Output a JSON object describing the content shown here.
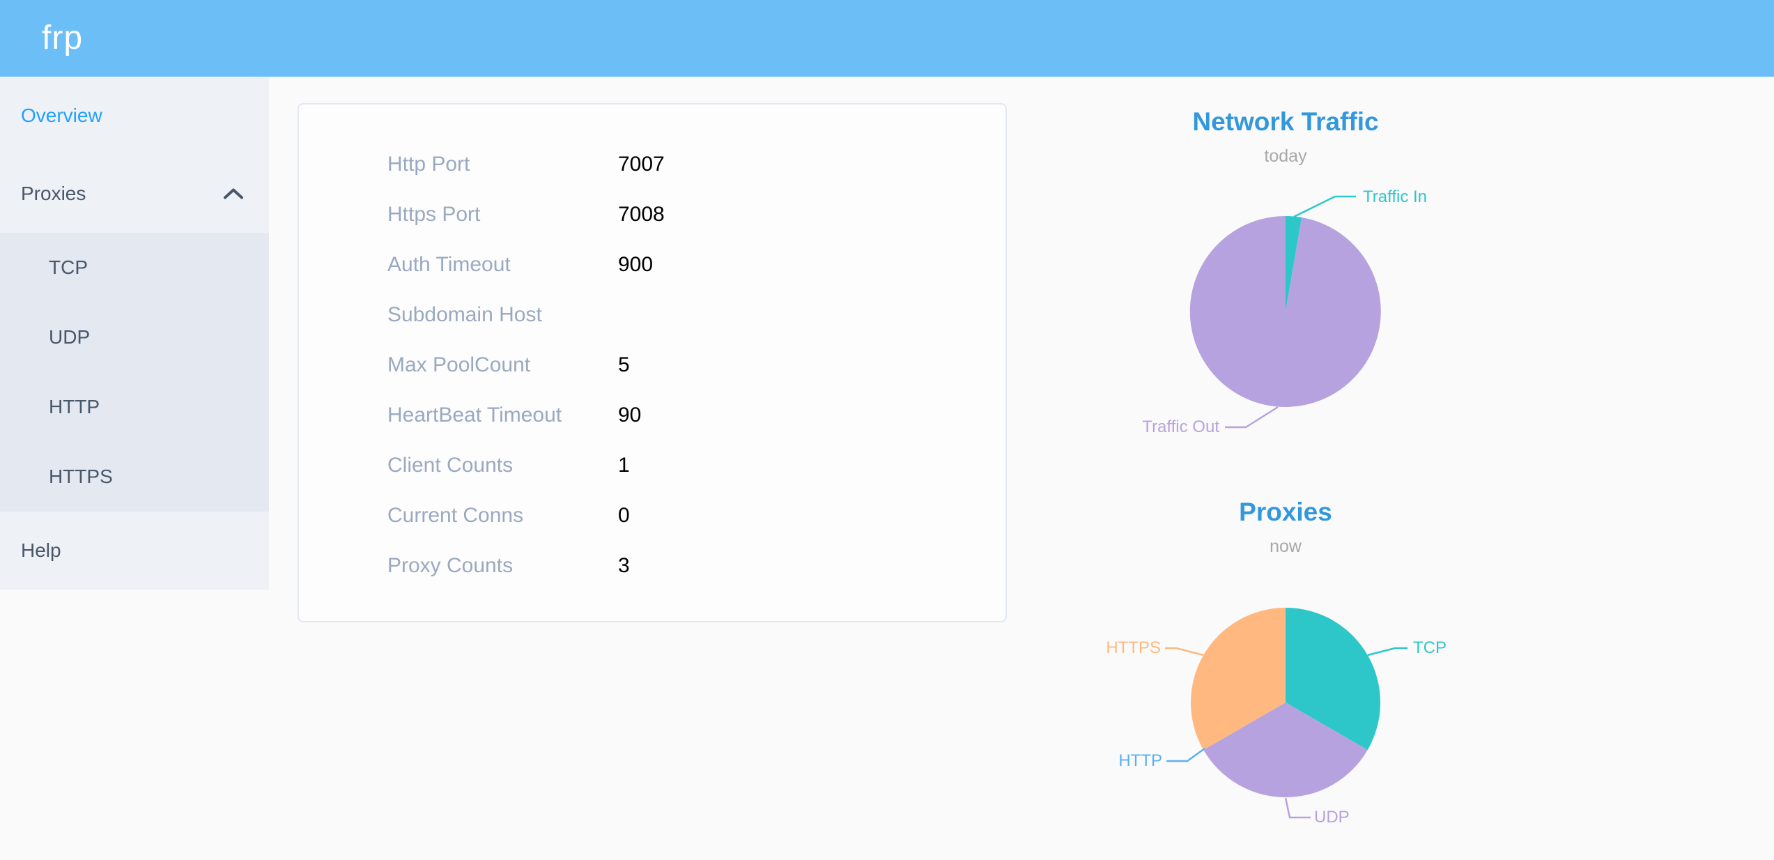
{
  "header": {
    "logo": "frp"
  },
  "sidebar": {
    "items": [
      {
        "label": "Overview",
        "active": true
      },
      {
        "label": "Proxies",
        "expanded": true
      },
      {
        "label": "TCP"
      },
      {
        "label": "UDP"
      },
      {
        "label": "HTTP"
      },
      {
        "label": "HTTPS"
      },
      {
        "label": "Help"
      }
    ]
  },
  "server_info": {
    "rows": [
      {
        "label": "Http Port",
        "value": "7007"
      },
      {
        "label": "Https Port",
        "value": "7008"
      },
      {
        "label": "Auth Timeout",
        "value": "900"
      },
      {
        "label": "Subdomain Host",
        "value": ""
      },
      {
        "label": "Max PoolCount",
        "value": "5"
      },
      {
        "label": "HeartBeat Timeout",
        "value": "90"
      },
      {
        "label": "Client Counts",
        "value": "1"
      },
      {
        "label": "Current Conns",
        "value": "0"
      },
      {
        "label": "Proxy Counts",
        "value": "3"
      }
    ]
  },
  "chart_data": [
    {
      "type": "pie",
      "title": "Network Traffic",
      "subtitle": "today",
      "legend_position": "none",
      "labels": "outside",
      "series": [
        {
          "name": "Traffic In",
          "value": 2.7,
          "color": "#2ec7c9"
        },
        {
          "name": "Traffic Out",
          "value": 97.3,
          "color": "#b6a2de"
        }
      ]
    },
    {
      "type": "pie",
      "title": "Proxies",
      "subtitle": "now",
      "legend_position": "none",
      "labels": "outside",
      "series": [
        {
          "name": "TCP",
          "value": 1,
          "color": "#2ec7c9"
        },
        {
          "name": "UDP",
          "value": 1,
          "color": "#b6a2de"
        },
        {
          "name": "HTTP",
          "value": 0,
          "color": "#5ab1ef"
        },
        {
          "name": "HTTPS",
          "value": 1,
          "color": "#ffb980"
        }
      ]
    }
  ],
  "colors": {
    "header_bg": "#6cbef7",
    "sidebar_bg": "#eef1f6",
    "submenu_bg": "#e4e8f1",
    "menu_text": "#48576a",
    "menu_active": "#20a0ff",
    "chart_title": "#3398db",
    "card_label": "#9aa9bf"
  }
}
